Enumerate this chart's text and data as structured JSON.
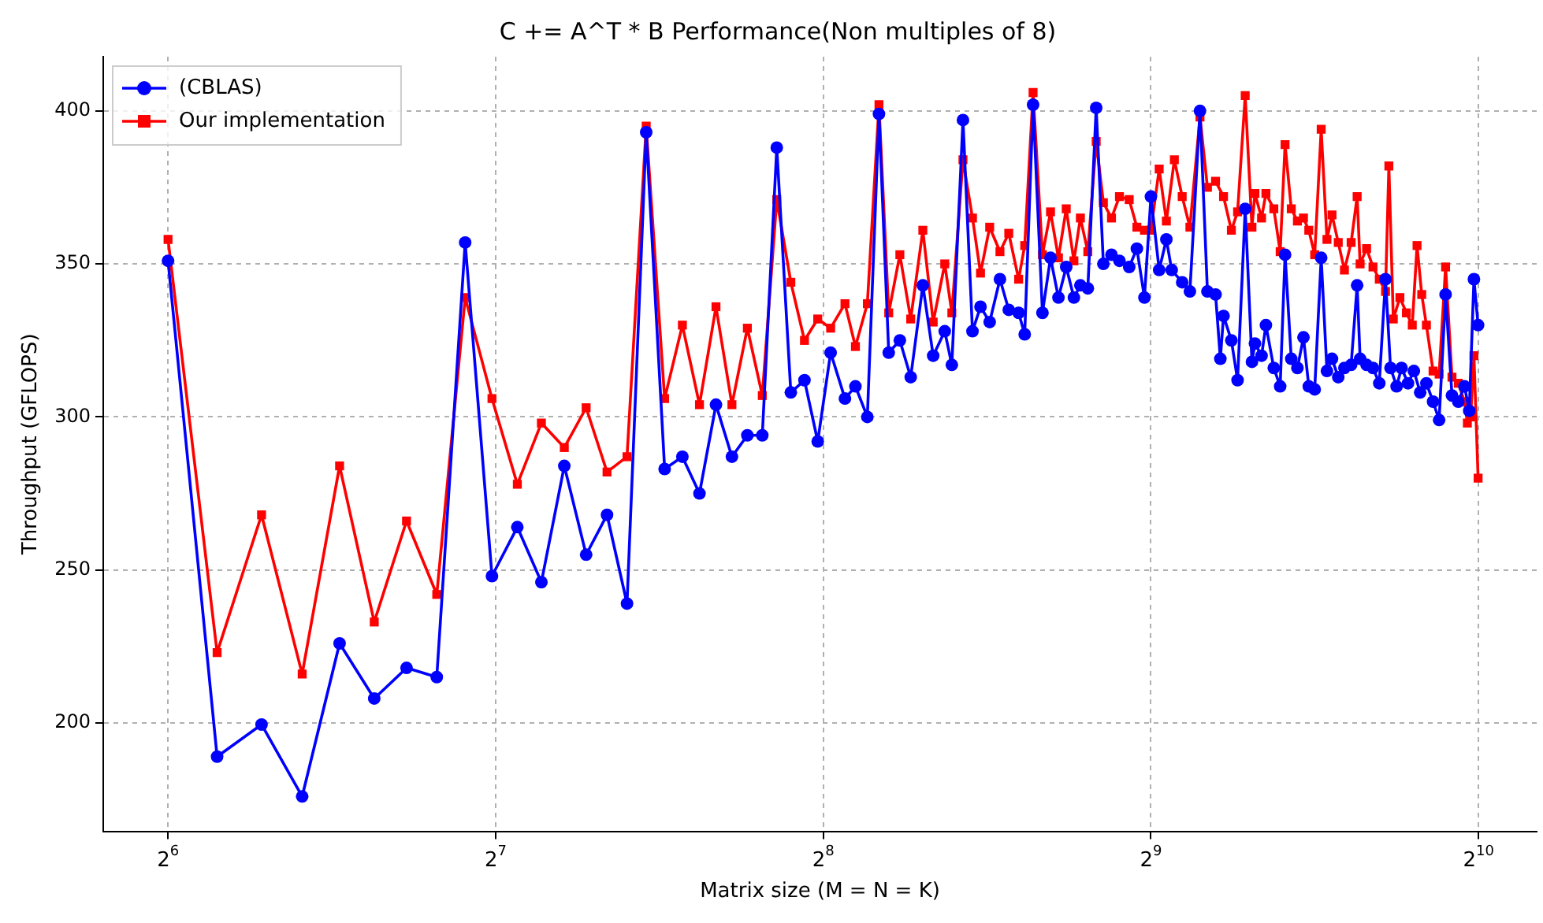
{
  "chart_data": {
    "type": "line",
    "title": "C += A^T * B Performance(Non multiples of 8)",
    "xlabel": "Matrix size (M = N = K)",
    "ylabel": "Throughput (GFLOPS)",
    "log": "x",
    "xlim": [
      55.8,
      1158
    ],
    "xticks": [
      {
        "value": 64,
        "label": "2$^{6}$"
      },
      {
        "value": 128,
        "label": "2$^{7}$"
      },
      {
        "value": 256,
        "label": "2$^{8}$"
      },
      {
        "value": 512,
        "label": "2$^{9}$"
      },
      {
        "value": 1024,
        "label": "2$^{10}$"
      }
    ],
    "ylim": [
      164.6,
      417.7
    ],
    "yticks": [
      200,
      250,
      300,
      350,
      400
    ],
    "grid": true,
    "legend": "top left",
    "series": [
      {
        "name": "(CBLAS)",
        "color": "#0000ff",
        "marker": "circle",
        "x": [
          64,
          71,
          78,
          85,
          92,
          99,
          106,
          113,
          120,
          127,
          134,
          141,
          148,
          155,
          162,
          169,
          176,
          183,
          190,
          197,
          204,
          211,
          218,
          225,
          232,
          239,
          246,
          253,
          260,
          268,
          274,
          281,
          288,
          294,
          301,
          308,
          316,
          323,
          331,
          336,
          344,
          351,
          357,
          364,
          372,
          379,
          387,
          392,
          399,
          407,
          414,
          421,
          428,
          435,
          441,
          448,
          456,
          463,
          471,
          479,
          489,
          497,
          505,
          512,
          521,
          529,
          535,
          547,
          556,
          568,
          577,
          587,
          593,
          597,
          607,
          615,
          625,
          634,
          638,
          647,
          653,
          664,
          673,
          680,
          689,
          698,
          707,
          715,
          724,
          734,
          743,
          751,
          761,
          771,
          782,
          792,
          797,
          808,
          819,
          830,
          841,
          850,
          861,
          870,
          882,
          893,
          905,
          917,
          930,
          942,
          955,
          968,
          981,
          994,
          1004,
          1014,
          1023
        ],
        "values": [
          351,
          189,
          199.5,
          176,
          226,
          208,
          218,
          215,
          357,
          248,
          264,
          246,
          284,
          255,
          268,
          239,
          393,
          283,
          287,
          275,
          304,
          287,
          294,
          294,
          388,
          308,
          312,
          292,
          321,
          306,
          310,
          300,
          399,
          321,
          325,
          313,
          343,
          320,
          328,
          317,
          397,
          328,
          336,
          331,
          345,
          335,
          334,
          327,
          402,
          334,
          352,
          339,
          349,
          339,
          343,
          342,
          401,
          350,
          353,
          351,
          349,
          355,
          339,
          372,
          348,
          358,
          348,
          344,
          341,
          400,
          341,
          340,
          319,
          333,
          325,
          312,
          368,
          318,
          324,
          320,
          330,
          316,
          310,
          353,
          319,
          316,
          326,
          310,
          309,
          352,
          315,
          319,
          313,
          316,
          317,
          343,
          319,
          317,
          316,
          311,
          345,
          316,
          310,
          316,
          311,
          315,
          308,
          311,
          305,
          299,
          340,
          307,
          305,
          310,
          302,
          345,
          330
        ]
      },
      {
        "name": "Our implementation",
        "color": "#ff0000",
        "marker": "square",
        "x": [
          64,
          71,
          78,
          85,
          92,
          99,
          106,
          113,
          120,
          127,
          134,
          141,
          148,
          155,
          162,
          169,
          176,
          183,
          190,
          197,
          204,
          211,
          218,
          225,
          232,
          239,
          246,
          253,
          260,
          268,
          274,
          281,
          288,
          294,
          301,
          308,
          316,
          323,
          331,
          336,
          344,
          351,
          357,
          364,
          372,
          379,
          387,
          392,
          399,
          407,
          414,
          421,
          428,
          435,
          441,
          448,
          456,
          463,
          471,
          479,
          489,
          497,
          505,
          512,
          521,
          529,
          538,
          547,
          556,
          568,
          577,
          587,
          597,
          607,
          615,
          625,
          634,
          638,
          647,
          653,
          664,
          673,
          680,
          689,
          698,
          707,
          715,
          724,
          734,
          743,
          751,
          761,
          771,
          782,
          792,
          797,
          808,
          819,
          830,
          841,
          847,
          855,
          867,
          879,
          890,
          899,
          908,
          917,
          930,
          942,
          955,
          968,
          981,
          994,
          1000,
          1007,
          1014,
          1023
        ],
        "values": [
          358,
          223,
          268,
          216,
          284,
          233,
          266,
          242,
          339,
          306,
          278,
          298,
          290,
          303,
          282,
          287,
          395,
          306,
          330,
          304,
          336,
          304,
          329,
          307,
          371,
          344,
          325,
          332,
          329,
          337,
          323,
          337,
          402,
          334,
          353,
          332,
          361,
          331,
          350,
          334,
          384,
          365,
          347,
          362,
          354,
          360,
          345,
          356,
          406,
          353,
          367,
          352,
          368,
          351,
          365,
          354,
          390,
          370,
          365,
          372,
          371,
          362,
          361,
          361,
          381,
          364,
          384,
          372,
          362,
          398,
          375,
          377,
          372,
          361,
          367,
          405,
          362,
          373,
          365,
          373,
          368,
          354,
          389,
          368,
          364,
          365,
          361,
          353,
          394,
          358,
          366,
          357,
          348,
          357,
          372,
          350,
          355,
          349,
          345,
          341,
          382,
          332,
          339,
          334,
          330,
          356,
          340,
          330,
          315,
          314,
          349,
          313,
          311,
          305,
          298,
          300,
          320,
          280
        ]
      }
    ]
  }
}
